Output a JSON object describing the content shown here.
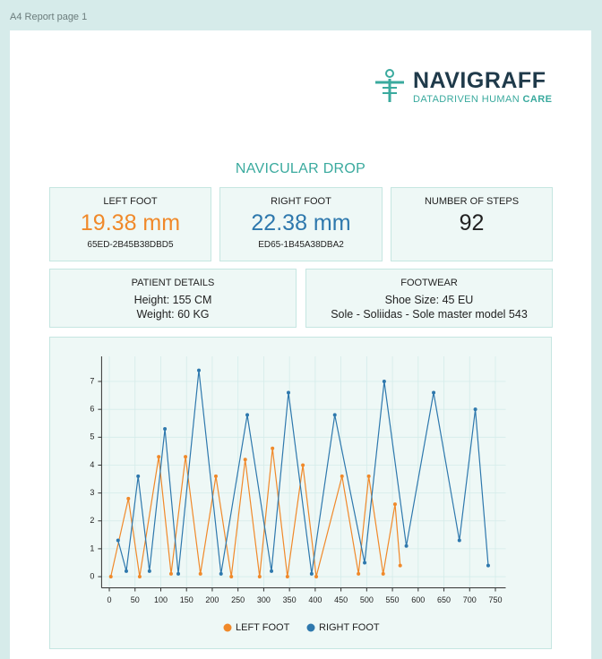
{
  "frame_label": "A4 Report page 1",
  "logo": {
    "name": "NAVIGRAFF",
    "tagline": "DATADRIVEN HUMAN",
    "tagline_emphasis": "CARE"
  },
  "section_title": "NAVICULAR DROP",
  "cards": {
    "left_foot": {
      "label": "LEFT FOOT",
      "value": "19.38 mm",
      "id": "65ED-2B45B38DBD5"
    },
    "right_foot": {
      "label": "RIGHT FOOT",
      "value": "22.38 mm",
      "id": "ED65-1B45A38DBA2"
    },
    "steps": {
      "label": "NUMBER OF STEPS",
      "value": 92
    },
    "patient": {
      "label": "PATIENT DETAILS",
      "lines": [
        "Height: 155 CM",
        "Weight: 60 KG"
      ]
    },
    "footwear": {
      "label": "FOOTWEAR",
      "lines": [
        "Shoe Size: 45 EU",
        "Sole - Soliidas - Sole master model 543"
      ]
    }
  },
  "chart_data": {
    "type": "line",
    "grid": true,
    "legend": "bottom",
    "xlim": [
      -15,
      770
    ],
    "xticks": [
      0,
      50,
      100,
      150,
      200,
      250,
      300,
      350,
      400,
      450,
      500,
      550,
      600,
      650,
      700,
      750
    ],
    "ylim": [
      -0.4,
      7.9
    ],
    "yticks": [
      0,
      1,
      2,
      3,
      4,
      5,
      6,
      7
    ],
    "series": [
      {
        "name": "LEFT FOOT",
        "color": "#f0892a",
        "x": [
          3,
          37,
          59,
          96,
          120,
          148,
          177,
          207,
          237,
          264,
          292,
          317,
          346,
          376,
          402,
          452,
          484,
          504,
          532,
          555,
          565
        ],
        "values": [
          0,
          2.8,
          0,
          4.3,
          0.1,
          4.3,
          0.1,
          3.6,
          0,
          4.2,
          0,
          4.6,
          0,
          4.0,
          0,
          3.6,
          0.1,
          3.6,
          0.1,
          2.6,
          0.4
        ]
      },
      {
        "name": "RIGHT FOOT",
        "color": "#2e78ad",
        "x": [
          17,
          33,
          56,
          78,
          108,
          134,
          174,
          217,
          268,
          315,
          348,
          393,
          438,
          496,
          534,
          577,
          630,
          680,
          711,
          736
        ],
        "values": [
          1.3,
          0.2,
          3.6,
          0.2,
          5.3,
          0.1,
          7.4,
          0.1,
          5.8,
          0.2,
          6.6,
          0.1,
          5.8,
          0.5,
          7.0,
          1.1,
          6.6,
          1.3,
          6.0,
          0.4
        ]
      }
    ]
  }
}
